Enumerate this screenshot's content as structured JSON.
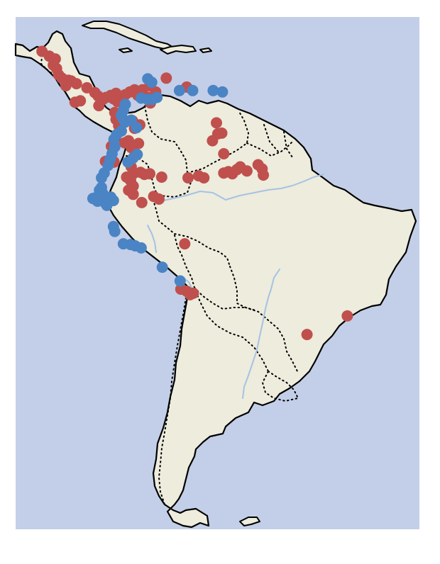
{
  "map": {
    "colors": {
      "ocean": "#c3cfe8",
      "land": "#edecdd",
      "coastline": "#000000",
      "borders": "#000000",
      "rivers": "#a7c2e3"
    },
    "border_style": "dotted",
    "point_groups": [
      {
        "color": "#c0504d",
        "lonlat": [
          [
            -88.0,
            17.0
          ],
          [
            -86.9,
            16.3
          ],
          [
            -86.0,
            15.9
          ],
          [
            -86.3,
            15.0
          ],
          [
            -85.8,
            14.5
          ],
          [
            -85.5,
            13.6
          ],
          [
            -85.0,
            13.1
          ],
          [
            -84.0,
            12.8
          ],
          [
            -83.6,
            12.7
          ],
          [
            -84.4,
            12.0
          ],
          [
            -82.8,
            12.3
          ],
          [
            -81.2,
            11.7
          ],
          [
            -80.0,
            11.0
          ],
          [
            -79.5,
            10.5
          ],
          [
            -78.8,
            10.0
          ],
          [
            -78.3,
            10.3
          ],
          [
            -77.6,
            10.6
          ],
          [
            -76.8,
            10.9
          ],
          [
            -77.2,
            10.1
          ],
          [
            -76.6,
            9.7
          ],
          [
            -76.0,
            9.8
          ],
          [
            -75.4,
            10.7
          ],
          [
            -74.7,
            11.1
          ],
          [
            -74.0,
            11.4
          ],
          [
            -73.5,
            10.6
          ],
          [
            -72.8,
            11.4
          ],
          [
            -71.7,
            12.0
          ],
          [
            -72.0,
            10.3
          ],
          [
            -70.8,
            11.1
          ],
          [
            -69.2,
            13.1
          ],
          [
            -66.1,
            11.8
          ],
          [
            -71.6,
            9.5
          ],
          [
            -75.7,
            8.4
          ],
          [
            -77.0,
            8.1
          ],
          [
            -76.8,
            7.1
          ],
          [
            -76.4,
            6.2
          ],
          [
            -74.3,
            6.9
          ],
          [
            -74.0,
            5.8
          ],
          [
            -73.2,
            6.3
          ],
          [
            -74.9,
            4.0
          ],
          [
            -75.5,
            3.7
          ],
          [
            -77.5,
            3.2
          ],
          [
            -74.5,
            3.0
          ],
          [
            -73.4,
            3.6
          ],
          [
            -78.4,
            1.0
          ],
          [
            -77.1,
            0.9
          ],
          [
            -74.5,
            0.2
          ],
          [
            -74.2,
            -0.8
          ],
          [
            -73.1,
            -0.6
          ],
          [
            -72.5,
            -0.9
          ],
          [
            -71.7,
            -0.8
          ],
          [
            -69.9,
            -1.3
          ],
          [
            -65.9,
            -1.4
          ],
          [
            -64.3,
            -1.1
          ],
          [
            -63.5,
            -1.4
          ],
          [
            -60.5,
            -0.7
          ],
          [
            -59.8,
            -0.5
          ],
          [
            -59.2,
            -0.8
          ],
          [
            -58.5,
            -0.2
          ],
          [
            -58.0,
            0.2
          ],
          [
            -57.0,
            -0.4
          ],
          [
            -55.3,
            0.5
          ],
          [
            -54.7,
            -0.1
          ],
          [
            -54.5,
            -1.0
          ],
          [
            -61.6,
            6.6
          ],
          [
            -62.2,
            4.0
          ],
          [
            -61.4,
            5.0
          ],
          [
            -60.8,
            5.1
          ],
          [
            -60.5,
            2.1
          ],
          [
            -75.2,
            -1.3
          ],
          [
            -74.6,
            -1.8
          ],
          [
            -74.2,
            -2.6
          ],
          [
            -74.9,
            -3.2
          ],
          [
            -74.2,
            -3.8
          ],
          [
            -72.9,
            -5.0
          ],
          [
            -71.1,
            -4.1
          ],
          [
            -70.3,
            -4.5
          ],
          [
            -66.4,
            -11.0
          ],
          [
            -67.0,
            -17.6
          ],
          [
            -66.1,
            -17.9
          ],
          [
            -65.6,
            -18.4
          ],
          [
            -65.1,
            -18.2
          ],
          [
            -41.8,
            -21.5
          ],
          [
            -47.9,
            -24.2
          ],
          [
            -82.2,
            9.8
          ],
          [
            -83.0,
            9.6
          ],
          [
            -79.4,
            9.1
          ]
        ]
      },
      {
        "color": "#4a84c4",
        "lonlat": [
          [
            -71.4,
            12.5
          ],
          [
            -67.2,
            11.3
          ],
          [
            -65.2,
            11.3
          ],
          [
            -62.1,
            11.3
          ],
          [
            -60.7,
            11.1
          ],
          [
            -72.0,
            10.0
          ],
          [
            -73.0,
            10.2
          ],
          [
            -71.3,
            10.0
          ],
          [
            -75.4,
            9.3
          ],
          [
            -75.7,
            8.4
          ],
          [
            -76.0,
            7.7
          ],
          [
            -75.7,
            7.1
          ],
          [
            -74.5,
            7.0
          ],
          [
            -73.7,
            5.9
          ],
          [
            -75.4,
            6.7
          ],
          [
            -76.0,
            5.4
          ],
          [
            -76.7,
            4.9
          ],
          [
            -77.1,
            4.2
          ],
          [
            -77.0,
            3.1
          ],
          [
            -77.4,
            2.1
          ],
          [
            -77.7,
            1.3
          ],
          [
            -78.0,
            0.4
          ],
          [
            -78.6,
            -0.7
          ],
          [
            -79.0,
            -1.4
          ],
          [
            -79.0,
            -2.8
          ],
          [
            -79.3,
            -3.2
          ],
          [
            -78.8,
            -3.7
          ],
          [
            -78.2,
            -4.4
          ],
          [
            -77.6,
            -4.2
          ],
          [
            -77.2,
            -4.7
          ],
          [
            -77.2,
            -8.5
          ],
          [
            -77.0,
            -9.2
          ],
          [
            -75.7,
            -11.0
          ],
          [
            -74.6,
            -11.1
          ],
          [
            -73.9,
            -11.3
          ],
          [
            -73.0,
            -11.6
          ],
          [
            -69.8,
            -14.4
          ],
          [
            -67.1,
            -16.4
          ],
          [
            -72.0,
            13.0
          ],
          [
            -70.6,
            10.3
          ],
          [
            -79.9,
            -4.3
          ],
          [
            -80.3,
            -4.4
          ],
          [
            -79.6,
            -4.8
          ],
          [
            -78.9,
            -4.6
          ],
          [
            -78.5,
            -5.0
          ],
          [
            -78.2,
            -5.4
          ],
          [
            -73.6,
            2.0
          ],
          [
            -74.2,
            1.5
          ],
          [
            -75.0,
            0.9
          ]
        ]
      }
    ]
  }
}
